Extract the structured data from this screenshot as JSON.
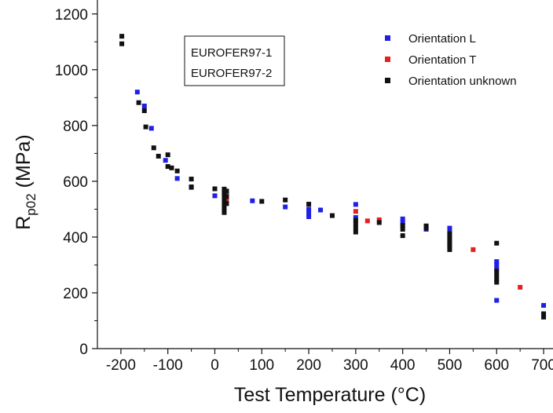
{
  "chart_data": {
    "type": "scatter",
    "xlabel": "Test Temperature (°C)",
    "ylabel": {
      "main": "R",
      "sub": "p02",
      "unit": " (MPa)"
    },
    "xlim": [
      -250,
      720
    ],
    "ylim": [
      0,
      1250
    ],
    "x_ticks": [
      -200,
      -100,
      0,
      100,
      200,
      300,
      400,
      500,
      600,
      700
    ],
    "x_tick_labels": [
      "-200",
      "-100",
      "0",
      "100",
      "200",
      "300",
      "400",
      "500",
      "600",
      "700"
    ],
    "y_ticks": [
      0,
      200,
      400,
      600,
      800,
      1000,
      1200
    ],
    "y_tick_labels": [
      "0",
      "200",
      "400",
      "600",
      "800",
      "1000",
      "1200"
    ],
    "grid": false,
    "materials_box": [
      "EUROFER97-1",
      "EUROFER97-2"
    ],
    "legend": {
      "placement": "top-right",
      "entries": [
        {
          "prefix": "Orientation ",
          "key": "L",
          "color": "#1f1fe6"
        },
        {
          "prefix": "Orientation ",
          "key": "T",
          "color": "#e61f1f"
        },
        {
          "prefix": "Orientation ",
          "key": "unknown",
          "color": "#111111"
        }
      ]
    },
    "series": [
      {
        "color": "#1f1fe6",
        "points": [
          [
            -165,
            920
          ],
          [
            -150,
            870
          ],
          [
            -135,
            790
          ],
          [
            -105,
            675
          ],
          [
            -80,
            610
          ],
          [
            -50,
            578
          ],
          [
            0,
            548
          ],
          [
            20,
            562
          ],
          [
            80,
            530
          ],
          [
            150,
            508
          ],
          [
            200,
            500
          ],
          [
            200,
            487
          ],
          [
            200,
            473
          ],
          [
            225,
            497
          ],
          [
            300,
            517
          ],
          [
            300,
            470
          ],
          [
            400,
            465
          ],
          [
            400,
            450
          ],
          [
            450,
            428
          ],
          [
            500,
            432
          ],
          [
            500,
            418
          ],
          [
            500,
            400
          ],
          [
            500,
            382
          ],
          [
            600,
            312
          ],
          [
            600,
            300
          ],
          [
            600,
            285
          ],
          [
            600,
            173
          ],
          [
            700,
            155
          ]
        ]
      },
      {
        "color": "#e61f1f",
        "points": [
          [
            25,
            553
          ],
          [
            25,
            540
          ],
          [
            25,
            528
          ],
          [
            300,
            492
          ],
          [
            325,
            458
          ],
          [
            350,
            462
          ],
          [
            450,
            437
          ],
          [
            500,
            373
          ],
          [
            550,
            355
          ],
          [
            650,
            220
          ]
        ]
      },
      {
        "color": "#111111",
        "points": [
          [
            -198,
            1120
          ],
          [
            -198,
            1093
          ],
          [
            -162,
            882
          ],
          [
            -150,
            853
          ],
          [
            -147,
            795
          ],
          [
            -130,
            720
          ],
          [
            -120,
            690
          ],
          [
            -100,
            695
          ],
          [
            -100,
            653
          ],
          [
            -92,
            648
          ],
          [
            -80,
            637
          ],
          [
            -50,
            608
          ],
          [
            -50,
            580
          ],
          [
            0,
            573
          ],
          [
            20,
            572
          ],
          [
            20,
            558
          ],
          [
            20,
            545
          ],
          [
            20,
            530
          ],
          [
            20,
            517
          ],
          [
            20,
            503
          ],
          [
            20,
            488
          ],
          [
            25,
            565
          ],
          [
            25,
            545
          ],
          [
            25,
            520
          ],
          [
            100,
            528
          ],
          [
            150,
            533
          ],
          [
            200,
            518
          ],
          [
            250,
            477
          ],
          [
            300,
            460
          ],
          [
            300,
            447
          ],
          [
            300,
            433
          ],
          [
            300,
            418
          ],
          [
            350,
            452
          ],
          [
            400,
            442
          ],
          [
            400,
            428
          ],
          [
            400,
            405
          ],
          [
            450,
            440
          ],
          [
            450,
            432
          ],
          [
            500,
            412
          ],
          [
            500,
            397
          ],
          [
            500,
            382
          ],
          [
            500,
            367
          ],
          [
            500,
            355
          ],
          [
            600,
            378
          ],
          [
            600,
            278
          ],
          [
            600,
            265
          ],
          [
            600,
            250
          ],
          [
            600,
            238
          ],
          [
            700,
            125
          ],
          [
            700,
            113
          ]
        ]
      }
    ]
  }
}
